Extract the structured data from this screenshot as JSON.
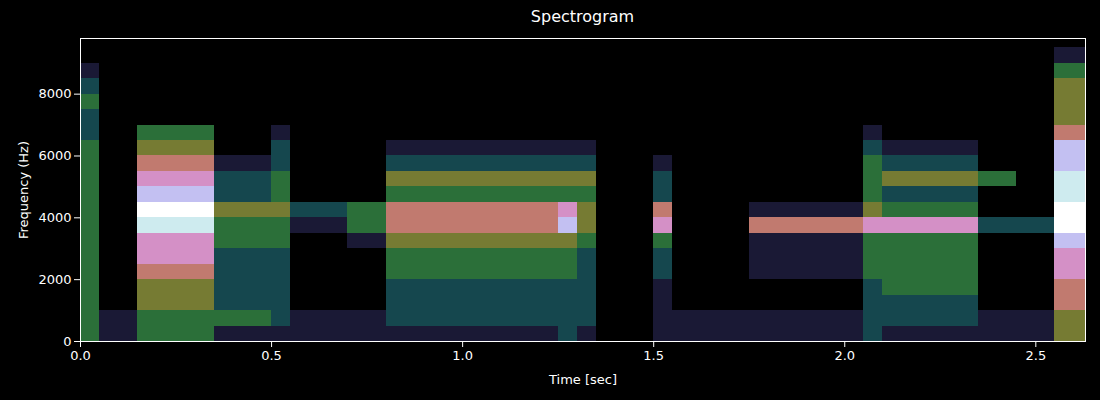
{
  "chart_data": {
    "type": "heatmap",
    "title": "Spectrogram",
    "x_label": "Time [sec]",
    "y_label": "Frequency (Hz)",
    "xlim": [
      0,
      2.63
    ],
    "ylim": [
      0,
      9800
    ],
    "xticks": [
      {
        "value": 0,
        "label": "0.0"
      },
      0.5,
      {
        "value": 1,
        "label": "1.0"
      },
      1.5,
      {
        "value": 2,
        "label": "2.0"
      },
      2.5
    ],
    "yticks": [
      0,
      2000,
      4000,
      6000,
      8000
    ],
    "time_edges": [
      0,
      0.05,
      0.1,
      0.15,
      0.2,
      0.25,
      0.3,
      0.35,
      0.4,
      0.45,
      0.5,
      0.55,
      0.6,
      0.65,
      0.7,
      0.75,
      0.8,
      0.85,
      0.9,
      0.95,
      1,
      1.05,
      1.1,
      1.15,
      1.2,
      1.25,
      1.3,
      1.35,
      1.4,
      1.45,
      1.5,
      1.55,
      1.6,
      1.65,
      1.7,
      1.75,
      1.8,
      1.85,
      1.9,
      1.95,
      2,
      2.05,
      2.1,
      2.15,
      2.2,
      2.25,
      2.3,
      2.35,
      2.4,
      2.45,
      2.5,
      2.55,
      2.6,
      2.63
    ],
    "frequency_edges": [
      0,
      500,
      1000,
      1500,
      2000,
      2500,
      3000,
      3500,
      4000,
      4500,
      5000,
      5500,
      6000,
      6500,
      7000,
      7500,
      8000,
      8500,
      9000,
      9500,
      9800
    ],
    "cells": [
      [
        4,
        2,
        2,
        4,
        4,
        4,
        4,
        2,
        2,
        2,
        2,
        2,
        2,
        2,
        2,
        2,
        2,
        2,
        2,
        2,
        2,
        2,
        2,
        2,
        2,
        3,
        2,
        1,
        1,
        1,
        2,
        2,
        2,
        2,
        2,
        2,
        2,
        2,
        2,
        2,
        2,
        3,
        2,
        2,
        2,
        2,
        2,
        2,
        2,
        2,
        2,
        5,
        5
      ],
      [
        4,
        2,
        2,
        4,
        4,
        4,
        4,
        4,
        4,
        4,
        3,
        2,
        2,
        2,
        2,
        2,
        3,
        3,
        3,
        3,
        3,
        3,
        3,
        3,
        3,
        3,
        3,
        1,
        1,
        1,
        2,
        2,
        2,
        2,
        2,
        2,
        2,
        2,
        2,
        2,
        2,
        3,
        3,
        3,
        3,
        3,
        3,
        2,
        2,
        2,
        2,
        5,
        5
      ],
      [
        4,
        1,
        1,
        5,
        5,
        5,
        5,
        3,
        3,
        3,
        3,
        1,
        1,
        1,
        1,
        1,
        3,
        3,
        3,
        3,
        3,
        3,
        3,
        3,
        3,
        3,
        3,
        1,
        1,
        1,
        2,
        1,
        1,
        1,
        1,
        1,
        1,
        1,
        1,
        1,
        1,
        3,
        3,
        3,
        3,
        3,
        3,
        1,
        1,
        1,
        1,
        6,
        6
      ],
      [
        4,
        1,
        1,
        5,
        5,
        5,
        5,
        3,
        3,
        3,
        3,
        1,
        1,
        1,
        1,
        1,
        3,
        3,
        3,
        3,
        3,
        3,
        3,
        3,
        3,
        3,
        3,
        1,
        1,
        1,
        2,
        1,
        1,
        1,
        1,
        1,
        1,
        1,
        1,
        1,
        1,
        3,
        4,
        4,
        4,
        4,
        4,
        1,
        1,
        1,
        1,
        6,
        6
      ],
      [
        4,
        1,
        1,
        6,
        6,
        6,
        6,
        3,
        3,
        3,
        3,
        1,
        1,
        1,
        1,
        1,
        4,
        4,
        4,
        4,
        4,
        4,
        4,
        4,
        4,
        4,
        3,
        1,
        1,
        1,
        3,
        1,
        1,
        1,
        1,
        2,
        2,
        2,
        2,
        2,
        2,
        4,
        4,
        4,
        4,
        4,
        4,
        1,
        1,
        1,
        1,
        7,
        7
      ],
      [
        4,
        1,
        1,
        7,
        7,
        7,
        7,
        3,
        3,
        3,
        3,
        1,
        1,
        1,
        1,
        1,
        4,
        4,
        4,
        4,
        4,
        4,
        4,
        4,
        4,
        4,
        3,
        1,
        1,
        1,
        3,
        1,
        1,
        1,
        1,
        2,
        2,
        2,
        2,
        2,
        2,
        4,
        4,
        4,
        4,
        4,
        4,
        1,
        1,
        1,
        1,
        7,
        7
      ],
      [
        4,
        1,
        1,
        7,
        7,
        7,
        7,
        4,
        4,
        4,
        4,
        1,
        1,
        1,
        2,
        2,
        5,
        5,
        5,
        5,
        5,
        5,
        5,
        5,
        5,
        5,
        4,
        1,
        1,
        1,
        4,
        1,
        1,
        1,
        1,
        2,
        2,
        2,
        2,
        2,
        2,
        4,
        4,
        4,
        4,
        4,
        4,
        1,
        1,
        1,
        1,
        8,
        8
      ],
      [
        4,
        1,
        1,
        9,
        9,
        9,
        9,
        4,
        4,
        4,
        4,
        2,
        2,
        2,
        4,
        4,
        6,
        6,
        6,
        6,
        6,
        6,
        6,
        6,
        6,
        8,
        5,
        1,
        1,
        1,
        7,
        1,
        1,
        1,
        1,
        6,
        6,
        6,
        6,
        6,
        6,
        7,
        7,
        7,
        7,
        7,
        7,
        3,
        3,
        3,
        3,
        10,
        10
      ],
      [
        4,
        1,
        1,
        10,
        10,
        10,
        10,
        5,
        5,
        5,
        5,
        3,
        3,
        3,
        4,
        4,
        6,
        6,
        6,
        6,
        6,
        6,
        6,
        6,
        6,
        7,
        5,
        1,
        1,
        1,
        6,
        1,
        1,
        1,
        1,
        2,
        2,
        2,
        2,
        2,
        2,
        5,
        4,
        4,
        4,
        4,
        4,
        1,
        1,
        1,
        1,
        10,
        10
      ],
      [
        4,
        1,
        1,
        8,
        8,
        8,
        8,
        3,
        3,
        3,
        4,
        1,
        1,
        1,
        1,
        1,
        4,
        4,
        4,
        4,
        4,
        4,
        4,
        4,
        4,
        4,
        4,
        1,
        1,
        1,
        3,
        1,
        1,
        1,
        1,
        1,
        1,
        1,
        1,
        1,
        1,
        4,
        3,
        3,
        3,
        3,
        3,
        1,
        1,
        1,
        1,
        9,
        9
      ],
      [
        4,
        1,
        1,
        7,
        7,
        7,
        7,
        3,
        3,
        3,
        4,
        1,
        1,
        1,
        1,
        1,
        5,
        5,
        5,
        5,
        5,
        5,
        5,
        5,
        5,
        5,
        5,
        1,
        1,
        1,
        3,
        1,
        1,
        1,
        1,
        1,
        1,
        1,
        1,
        1,
        1,
        4,
        5,
        5,
        5,
        5,
        5,
        4,
        4,
        1,
        1,
        9,
        9
      ],
      [
        4,
        1,
        1,
        6,
        6,
        6,
        6,
        2,
        2,
        2,
        3,
        1,
        1,
        1,
        1,
        1,
        3,
        3,
        3,
        3,
        3,
        3,
        3,
        3,
        3,
        3,
        3,
        1,
        1,
        1,
        2,
        1,
        1,
        1,
        1,
        1,
        1,
        1,
        1,
        1,
        1,
        4,
        3,
        3,
        3,
        3,
        3,
        1,
        1,
        1,
        1,
        8,
        8
      ],
      [
        4,
        1,
        1,
        5,
        5,
        5,
        5,
        1,
        1,
        1,
        3,
        1,
        1,
        1,
        1,
        1,
        2,
        2,
        2,
        2,
        2,
        2,
        2,
        2,
        2,
        2,
        2,
        1,
        1,
        1,
        1,
        1,
        1,
        1,
        1,
        1,
        1,
        1,
        1,
        1,
        1,
        3,
        2,
        2,
        2,
        2,
        2,
        1,
        1,
        1,
        1,
        8,
        8
      ],
      [
        3,
        1,
        1,
        4,
        4,
        4,
        4,
        1,
        1,
        1,
        2,
        1,
        1,
        1,
        1,
        1,
        1,
        1,
        1,
        1,
        1,
        1,
        1,
        1,
        1,
        1,
        1,
        1,
        1,
        1,
        1,
        1,
        1,
        1,
        1,
        1,
        1,
        1,
        1,
        1,
        1,
        2,
        1,
        1,
        1,
        1,
        1,
        1,
        1,
        1,
        1,
        6,
        6
      ],
      [
        3,
        1,
        1,
        1,
        1,
        1,
        1,
        1,
        1,
        1,
        1,
        1,
        1,
        1,
        1,
        1,
        1,
        1,
        1,
        1,
        1,
        1,
        1,
        1,
        1,
        1,
        1,
        1,
        1,
        1,
        1,
        1,
        1,
        1,
        1,
        1,
        1,
        1,
        1,
        1,
        1,
        1,
        1,
        1,
        1,
        1,
        1,
        1,
        1,
        1,
        1,
        5,
        5
      ],
      [
        4,
        1,
        1,
        1,
        1,
        1,
        1,
        1,
        1,
        1,
        1,
        1,
        1,
        1,
        1,
        1,
        1,
        1,
        1,
        1,
        1,
        1,
        1,
        1,
        1,
        1,
        1,
        1,
        1,
        1,
        1,
        1,
        1,
        1,
        1,
        1,
        1,
        1,
        1,
        1,
        1,
        1,
        1,
        1,
        1,
        1,
        1,
        1,
        1,
        1,
        1,
        5,
        5
      ],
      [
        3,
        1,
        1,
        1,
        1,
        1,
        1,
        1,
        1,
        1,
        1,
        1,
        1,
        1,
        1,
        1,
        1,
        1,
        1,
        1,
        1,
        1,
        1,
        1,
        1,
        1,
        1,
        1,
        1,
        1,
        1,
        1,
        1,
        1,
        1,
        1,
        1,
        1,
        1,
        1,
        1,
        1,
        1,
        1,
        1,
        1,
        1,
        1,
        1,
        1,
        1,
        5,
        5
      ],
      [
        2,
        1,
        1,
        1,
        1,
        1,
        1,
        1,
        1,
        1,
        1,
        1,
        1,
        1,
        1,
        1,
        1,
        1,
        1,
        1,
        1,
        1,
        1,
        1,
        1,
        1,
        1,
        1,
        1,
        1,
        1,
        1,
        1,
        1,
        1,
        1,
        1,
        1,
        1,
        1,
        1,
        1,
        1,
        1,
        1,
        1,
        1,
        1,
        1,
        1,
        1,
        4,
        4
      ],
      [
        1,
        1,
        1,
        1,
        1,
        1,
        1,
        1,
        1,
        1,
        1,
        1,
        1,
        1,
        1,
        1,
        1,
        1,
        1,
        1,
        1,
        1,
        1,
        1,
        1,
        1,
        1,
        1,
        1,
        1,
        1,
        1,
        1,
        1,
        1,
        1,
        1,
        1,
        1,
        1,
        1,
        1,
        1,
        1,
        1,
        1,
        1,
        1,
        1,
        1,
        1,
        2,
        2
      ],
      [
        1,
        1,
        1,
        1,
        1,
        1,
        1,
        1,
        1,
        1,
        1,
        1,
        1,
        1,
        1,
        1,
        1,
        1,
        1,
        1,
        1,
        1,
        1,
        1,
        1,
        1,
        1,
        1,
        1,
        1,
        1,
        1,
        1,
        1,
        1,
        1,
        1,
        1,
        1,
        1,
        1,
        1,
        1,
        1,
        1,
        1,
        1,
        1,
        1,
        1,
        1,
        1,
        1
      ]
    ]
  }
}
